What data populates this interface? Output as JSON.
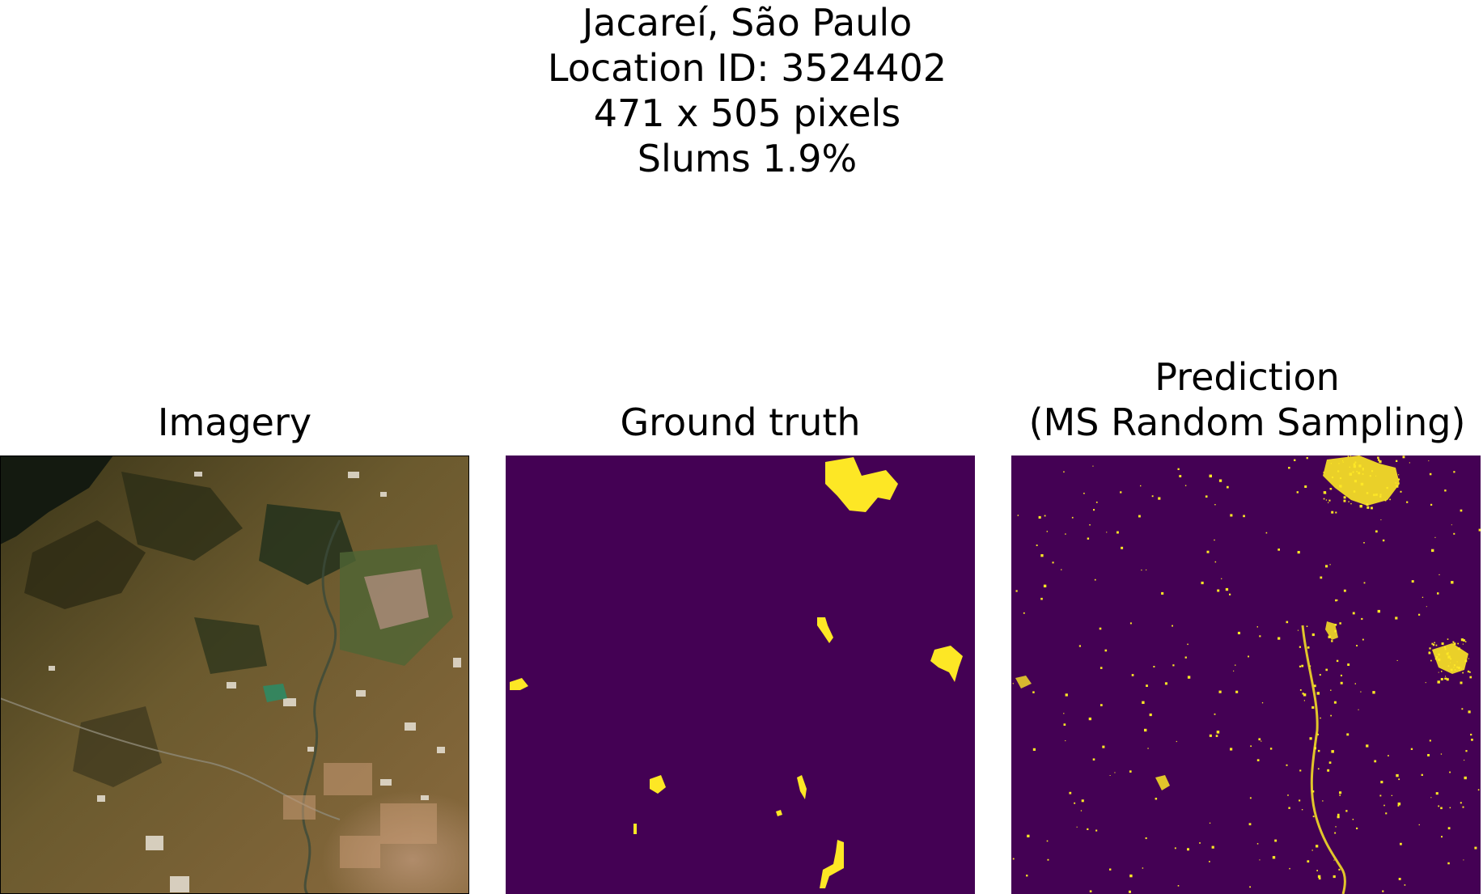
{
  "figure": {
    "title_lines": [
      "Jacareí, São Paulo",
      "Location ID: 3524402",
      "471 x 505 pixels",
      "Slums 1.9%"
    ]
  },
  "panels": [
    {
      "title_lines": [
        "Imagery"
      ],
      "kind": "satellite-image"
    },
    {
      "title_lines": [
        "Ground truth"
      ],
      "kind": "mask",
      "background": "#440154",
      "foreground": "#fde725"
    },
    {
      "title_lines": [
        "Prediction",
        "(MS Random Sampling)"
      ],
      "kind": "mask",
      "background": "#440154",
      "foreground": "#fde725"
    }
  ],
  "colors": {
    "mask_background": "#440154",
    "mask_foreground": "#fde725"
  }
}
